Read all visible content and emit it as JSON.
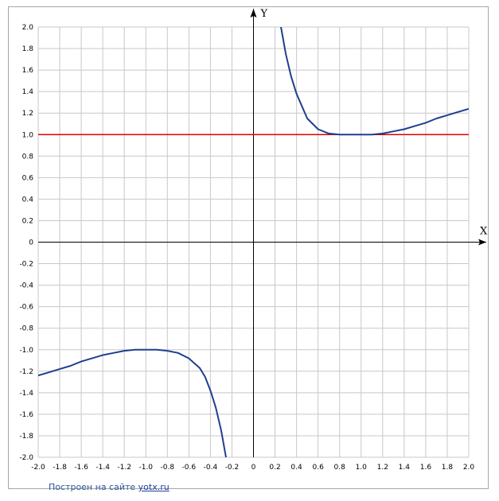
{
  "credit": {
    "text": "Построен на сайте",
    "link": "yotx.ru"
  },
  "colors": {
    "grid": "#c8c8c8",
    "axis": "#000000",
    "curve": "#1f3f8f",
    "hline": "#e00000",
    "frame": "#a6a6a6"
  },
  "chart_data": {
    "type": "line",
    "xlabel": "X",
    "ylabel": "Y",
    "xlim": [
      -2.0,
      2.0
    ],
    "ylim": [
      -2.0,
      2.0
    ],
    "x_ticks": [
      -2.0,
      -1.8,
      -1.6,
      -1.4,
      -1.2,
      -1.0,
      -0.8,
      -0.6,
      -0.4,
      -0.2,
      0,
      0.2,
      0.4,
      0.6,
      0.8,
      1.0,
      1.2,
      1.4,
      1.6,
      1.8,
      2.0
    ],
    "x_tick_labels": [
      "-2.0",
      "-1.8",
      "-1.6",
      "-1.4",
      "-1.2",
      "-1.0",
      "-0.8",
      "-0.6",
      "-0.4",
      "-0.2",
      "0",
      "0.2",
      "0.4",
      "0.6",
      "0.8",
      "1.0",
      "1.2",
      "1.4",
      "1.6",
      "1.8",
      "2.0"
    ],
    "y_ticks": [
      2.0,
      1.8,
      1.6,
      1.4,
      1.2,
      1.0,
      0.8,
      0.6,
      0.4,
      0.2,
      0,
      -0.2,
      -0.4,
      -0.6,
      -0.8,
      -1.0,
      -1.2,
      -1.4,
      -1.6,
      -1.8,
      -2.0
    ],
    "y_tick_labels": [
      "2.0",
      "1.8",
      "1.6",
      "1.4",
      "1.2",
      "1.0",
      "0.8",
      "0.6",
      "0.4",
      "0.2",
      "0",
      "-0.2",
      "-0.4",
      "-0.6",
      "-0.8",
      "-1.0",
      "-1.2",
      "-1.4",
      "-1.6",
      "-1.8",
      "-2.0"
    ],
    "grid": true,
    "series": [
      {
        "x": [
          0.25,
          0.3,
          0.35,
          0.4,
          0.5,
          0.6,
          0.7,
          0.8,
          0.9,
          1.0,
          1.1,
          1.2,
          1.3,
          1.4,
          1.5,
          1.6,
          1.7,
          1.8,
          1.9,
          2.0
        ],
        "y": [
          2.03,
          1.75,
          1.54,
          1.38,
          1.15,
          1.05,
          1.01,
          1.0,
          1.0,
          1.0,
          1.0,
          1.01,
          1.03,
          1.05,
          1.08,
          1.11,
          1.15,
          1.18,
          1.21,
          1.24
        ],
        "color": "#1f3f8f"
      },
      {
        "x": [
          -2.0,
          -1.9,
          -1.8,
          -1.7,
          -1.6,
          -1.5,
          -1.4,
          -1.3,
          -1.2,
          -1.1,
          -1.0,
          -0.9,
          -0.8,
          -0.7,
          -0.6,
          -0.5,
          -0.45,
          -0.4,
          -0.35,
          -0.3,
          -0.25
        ],
        "y": [
          -1.24,
          -1.21,
          -1.18,
          -1.15,
          -1.11,
          -1.08,
          -1.05,
          -1.03,
          -1.01,
          -1.0,
          -1.0,
          -1.0,
          -1.01,
          -1.03,
          -1.08,
          -1.17,
          -1.25,
          -1.38,
          -1.54,
          -1.75,
          -2.03
        ],
        "color": "#1f3f8f"
      }
    ],
    "horizontal_line": {
      "y": 1.0,
      "color": "#e00000"
    }
  }
}
